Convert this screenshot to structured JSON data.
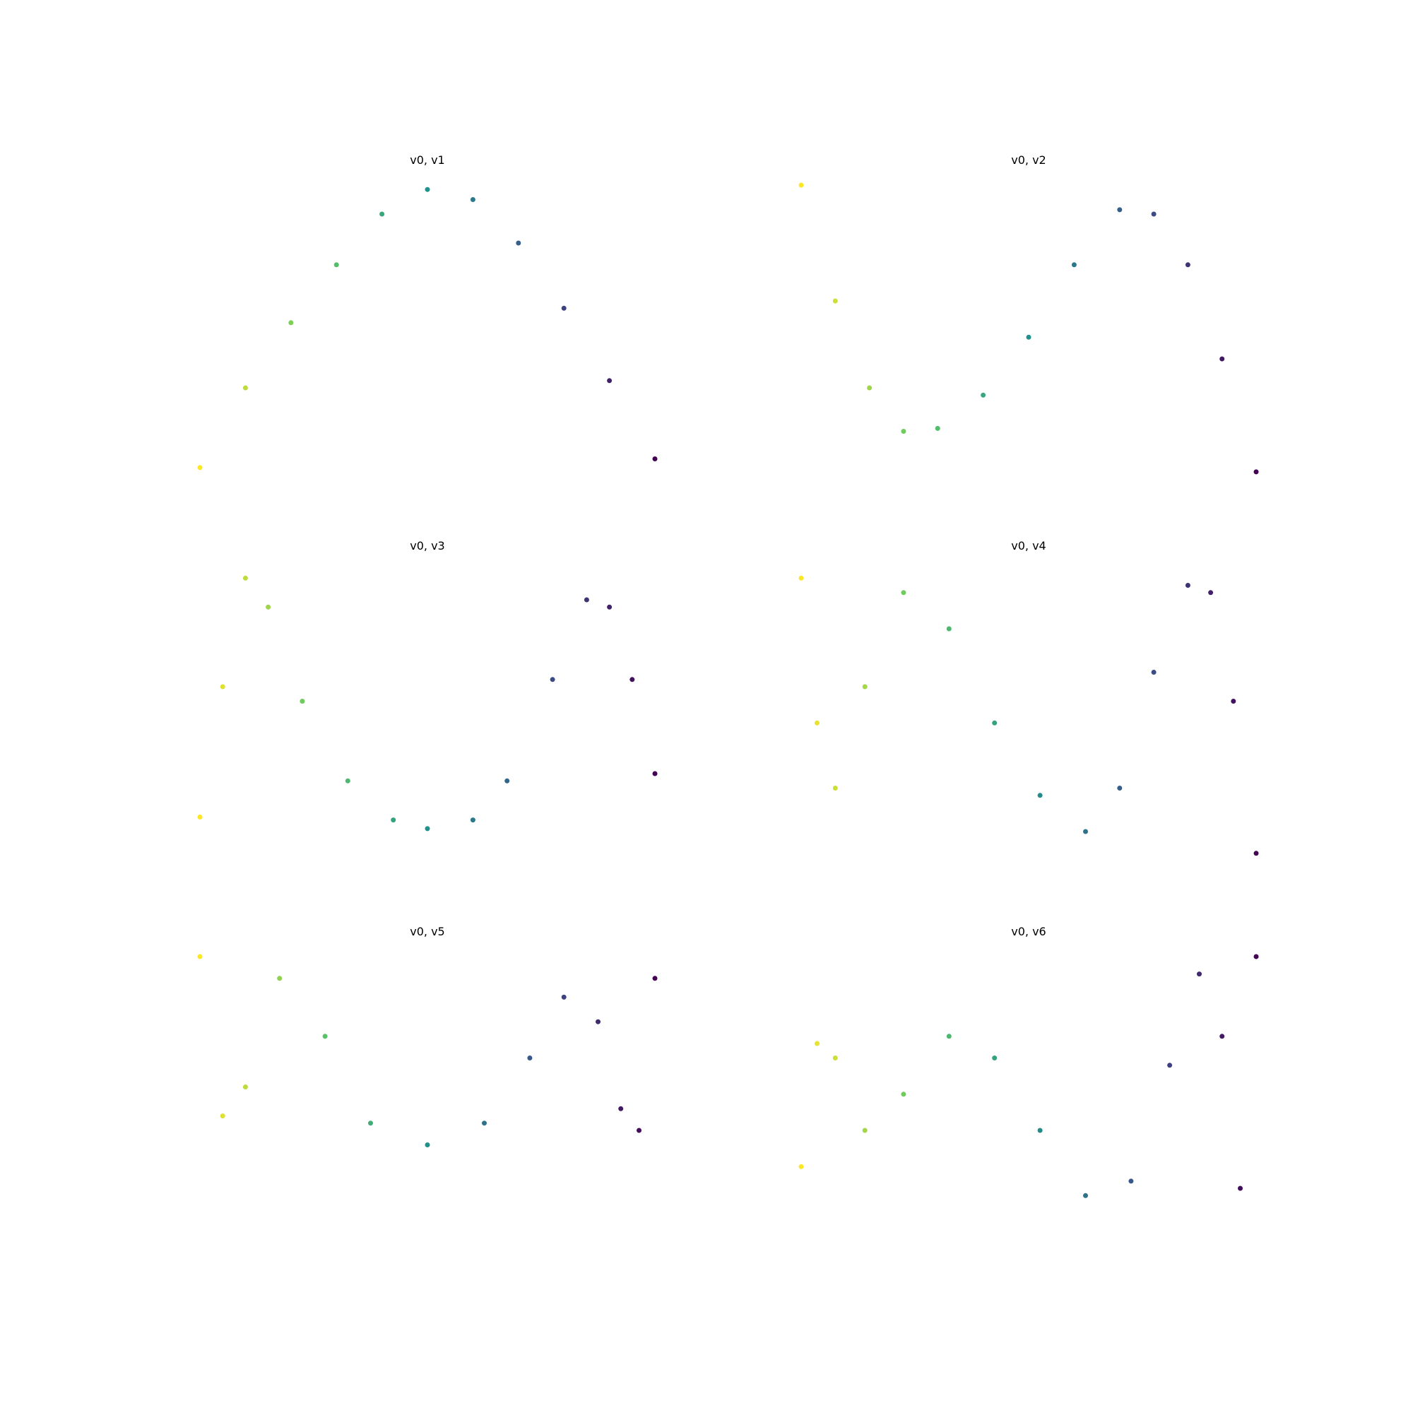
{
  "chart_data": [
    {
      "type": "scatter",
      "title": "v0, v1",
      "xlim": [
        -1,
        1
      ],
      "ylim": [
        -1,
        1
      ],
      "axes": "off",
      "grid": false,
      "colormap": "viridis",
      "colormap_stops": [
        "#440154",
        "#3b528b",
        "#21918c",
        "#5ec962",
        "#fde725"
      ],
      "series": [
        {
          "x": [
            -1.0,
            -0.8,
            -0.6,
            -0.4,
            -0.2,
            0.0,
            0.2,
            0.4,
            0.6,
            0.8,
            1.0
          ],
          "y": [
            -0.95,
            -0.4,
            0.05,
            0.45,
            0.8,
            0.97,
            0.9,
            0.6,
            0.15,
            -0.35,
            -0.89
          ]
        }
      ]
    },
    {
      "type": "scatter",
      "title": "v0, v2",
      "xlim": [
        -1,
        1
      ],
      "ylim": [
        -1,
        1
      ],
      "axes": "off",
      "grid": false,
      "colormap": "viridis",
      "colormap_stops": [
        "#440154",
        "#3b528b",
        "#21918c",
        "#5ec962",
        "#fde725"
      ],
      "series": [
        {
          "x": [
            -1.0,
            -0.85,
            -0.7,
            -0.55,
            -0.4,
            -0.2,
            0.0,
            0.2,
            0.4,
            0.55,
            0.7,
            0.85,
            1.0
          ],
          "y": [
            1.0,
            0.2,
            -0.4,
            -0.7,
            -0.68,
            -0.45,
            -0.05,
            0.45,
            0.83,
            0.8,
            0.45,
            -0.2,
            -0.98
          ]
        }
      ]
    },
    {
      "type": "scatter",
      "title": "v0, v3",
      "xlim": [
        -1,
        1
      ],
      "ylim": [
        -1,
        1
      ],
      "axes": "off",
      "grid": false,
      "colormap": "viridis",
      "colormap_stops": [
        "#440154",
        "#3b528b",
        "#21918c",
        "#5ec962",
        "#fde725"
      ],
      "series": [
        {
          "x": [
            -1.0,
            -0.9,
            -0.8,
            -0.7,
            -0.55,
            -0.35,
            -0.15,
            0.0,
            0.2,
            0.35,
            0.55,
            0.7,
            0.8,
            0.9,
            1.0
          ],
          "y": [
            -0.7,
            0.2,
            0.95,
            0.75,
            0.1,
            -0.45,
            -0.72,
            -0.78,
            -0.72,
            -0.45,
            0.25,
            0.8,
            0.75,
            0.25,
            -0.4
          ]
        }
      ]
    },
    {
      "type": "scatter",
      "title": "v0, v4",
      "xlim": [
        -1,
        1
      ],
      "ylim": [
        -1,
        1
      ],
      "axes": "off",
      "grid": false,
      "colormap": "viridis",
      "colormap_stops": [
        "#440154",
        "#3b528b",
        "#21918c",
        "#5ec962",
        "#fde725"
      ],
      "series": [
        {
          "x": [
            -1.0,
            -0.93,
            -0.85,
            -0.72,
            -0.55,
            -0.35,
            -0.15,
            0.05,
            0.25,
            0.4,
            0.55,
            0.7,
            0.8,
            0.9,
            1.0
          ],
          "y": [
            0.95,
            -0.05,
            -0.5,
            0.2,
            0.85,
            0.6,
            -0.05,
            -0.55,
            -0.8,
            -0.5,
            0.3,
            0.9,
            0.85,
            0.1,
            -0.95
          ]
        }
      ]
    },
    {
      "type": "scatter",
      "title": "v0, v5",
      "xlim": [
        -1,
        1
      ],
      "ylim": [
        -1,
        1
      ],
      "axes": "off",
      "grid": false,
      "colormap": "viridis",
      "colormap_stops": [
        "#440154",
        "#3b528b",
        "#21918c",
        "#5ec962",
        "#fde725"
      ],
      "series": [
        {
          "x": [
            -1.0,
            -0.9,
            -0.8,
            -0.65,
            -0.45,
            -0.25,
            0.0,
            0.25,
            0.45,
            0.6,
            0.75,
            0.85,
            0.93,
            1.0
          ],
          "y": [
            1.0,
            -0.1,
            0.1,
            0.85,
            0.45,
            -0.15,
            -0.3,
            -0.15,
            0.3,
            0.72,
            0.55,
            -0.05,
            -0.2,
            0.85
          ]
        }
      ]
    },
    {
      "type": "scatter",
      "title": "v0, v6",
      "xlim": [
        -1,
        1
      ],
      "ylim": [
        -1,
        1
      ],
      "axes": "off",
      "grid": false,
      "colormap": "viridis",
      "colormap_stops": [
        "#440154",
        "#3b528b",
        "#21918c",
        "#5ec962",
        "#fde725"
      ],
      "series": [
        {
          "x": [
            -1.0,
            -0.93,
            -0.85,
            -0.72,
            -0.55,
            -0.35,
            -0.15,
            0.05,
            0.25,
            0.45,
            0.62,
            0.75,
            0.85,
            0.93,
            1.0
          ],
          "y": [
            -0.45,
            0.4,
            0.3,
            -0.2,
            0.05,
            0.45,
            0.3,
            -0.2,
            -0.65,
            -0.55,
            0.25,
            0.88,
            0.45,
            -0.6,
            1.0
          ]
        }
      ]
    }
  ]
}
